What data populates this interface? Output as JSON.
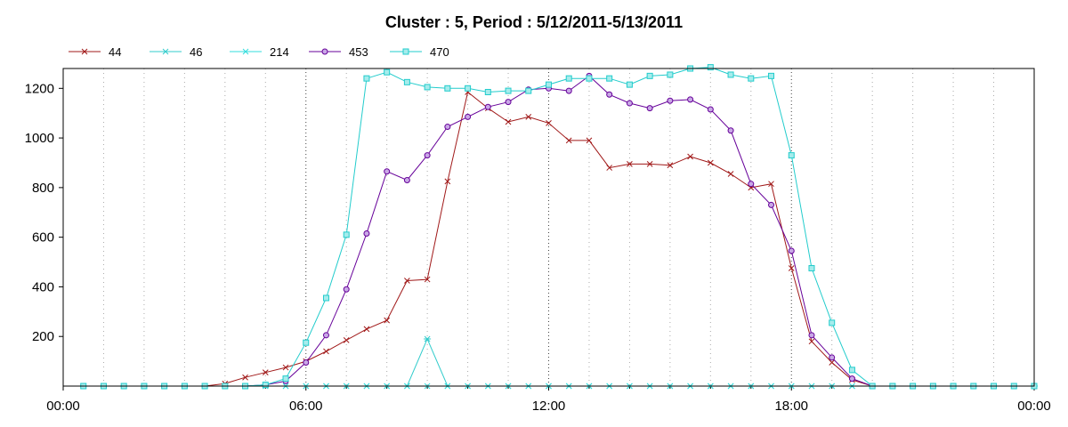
{
  "chart_data": {
    "type": "line",
    "title": "Cluster : 5, Period : 5/12/2011-5/13/2011",
    "xlabel": "",
    "ylabel": "",
    "xlim": [
      0,
      24
    ],
    "ylim": [
      0,
      1280
    ],
    "x_ticks": [
      "00:00",
      "06:00",
      "12:00",
      "18:00",
      "00:00"
    ],
    "y_ticks": [
      200,
      400,
      600,
      800,
      1000,
      1200
    ],
    "grid": true,
    "legend_position": "top-left",
    "x": [
      0.5,
      1.0,
      1.5,
      2.0,
      2.5,
      3.0,
      3.5,
      4.0,
      4.5,
      5.0,
      5.5,
      6.0,
      6.5,
      7.0,
      7.5,
      8.0,
      8.5,
      9.0,
      9.5,
      10.0,
      10.5,
      11.0,
      11.5,
      12.0,
      12.5,
      13.0,
      13.5,
      14.0,
      14.5,
      15.0,
      15.5,
      16.0,
      16.5,
      17.0,
      17.5,
      18.0,
      18.5,
      19.0,
      19.5,
      20.0,
      20.5,
      21.0,
      21.5,
      22.0,
      22.5,
      23.0,
      23.5,
      24.0
    ],
    "series": [
      {
        "name": "44",
        "color": "#a01818",
        "marker": "x",
        "values": [
          0,
          0,
          0,
          0,
          0,
          0,
          0,
          10,
          35,
          55,
          75,
          100,
          140,
          185,
          230,
          265,
          425,
          430,
          825,
          1185,
          1120,
          1065,
          1085,
          1060,
          990,
          990,
          880,
          895,
          895,
          890,
          925,
          900,
          855,
          800,
          815,
          475,
          180,
          95,
          25,
          0,
          0,
          0,
          0,
          0,
          0,
          0,
          0,
          0
        ]
      },
      {
        "name": "46",
        "color": "#33cccc",
        "marker": "asterisk",
        "values": [
          0,
          0,
          0,
          0,
          0,
          0,
          0,
          0,
          0,
          0,
          0,
          0,
          0,
          0,
          0,
          0,
          0,
          190,
          0,
          0,
          0,
          0,
          0,
          0,
          0,
          0,
          0,
          0,
          0,
          0,
          0,
          0,
          0,
          0,
          0,
          0,
          0,
          0,
          0,
          0,
          0,
          0,
          0,
          0,
          0,
          0,
          0,
          0
        ]
      },
      {
        "name": "214",
        "color": "#33dddd",
        "marker": "x",
        "values": [
          0,
          0,
          0,
          0,
          0,
          0,
          0,
          0,
          0,
          0,
          0,
          0,
          0,
          0,
          0,
          0,
          0,
          0,
          0,
          0,
          0,
          0,
          0,
          0,
          0,
          0,
          0,
          0,
          0,
          0,
          0,
          0,
          0,
          0,
          0,
          0,
          0,
          0,
          0,
          0,
          0,
          0,
          0,
          0,
          0,
          0,
          0,
          0
        ]
      },
      {
        "name": "453",
        "color": "#660099",
        "marker": "circle",
        "values": [
          0,
          0,
          0,
          0,
          0,
          0,
          0,
          0,
          0,
          5,
          20,
          95,
          205,
          390,
          615,
          865,
          830,
          930,
          1045,
          1085,
          1125,
          1145,
          1195,
          1200,
          1190,
          1250,
          1175,
          1140,
          1120,
          1150,
          1155,
          1115,
          1030,
          815,
          730,
          545,
          205,
          115,
          30,
          0,
          0,
          0,
          0,
          0,
          0,
          0,
          0,
          0
        ]
      },
      {
        "name": "470",
        "color": "#22cccc",
        "marker": "square",
        "values": [
          0,
          0,
          0,
          0,
          0,
          0,
          0,
          0,
          0,
          5,
          30,
          175,
          355,
          610,
          1240,
          1265,
          1225,
          1205,
          1200,
          1200,
          1185,
          1190,
          1190,
          1215,
          1240,
          1240,
          1240,
          1215,
          1250,
          1255,
          1280,
          1285,
          1255,
          1240,
          1250,
          930,
          475,
          255,
          65,
          0,
          0,
          0,
          0,
          0,
          0,
          0,
          0,
          0
        ]
      }
    ]
  }
}
